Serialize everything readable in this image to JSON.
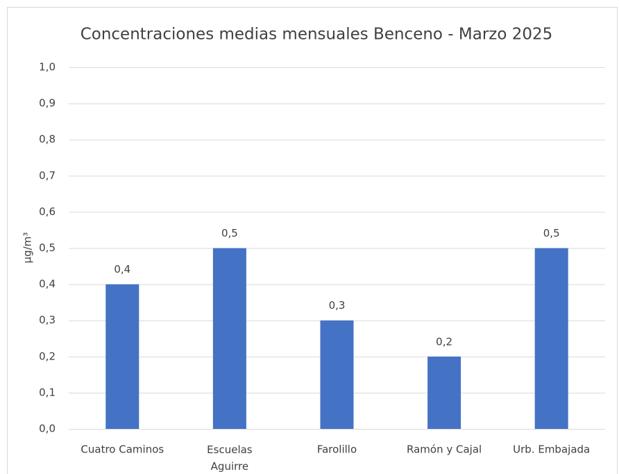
{
  "chart_data": {
    "type": "bar",
    "title": "Concentraciones medias mensuales Benceno - Marzo 2025",
    "y_label": "µg/m³",
    "categories": [
      "Cuatro Caminos",
      "Escuelas Aguirre",
      "Farolillo",
      "Ramón y Cajal",
      "Urb. Embajada"
    ],
    "values": [
      0.4,
      0.5,
      0.3,
      0.2,
      0.5
    ],
    "value_labels": [
      "0,4",
      "0,5",
      "0,3",
      "0,2",
      "0,5"
    ],
    "color": "#4472c4",
    "ylim": [
      0,
      1
    ],
    "yticks": [
      {
        "value": 0,
        "label": "0,0"
      },
      {
        "value": 0.1,
        "label": "0,1"
      },
      {
        "value": 0.2,
        "label": "0,2"
      },
      {
        "value": 0.3,
        "label": "0,3"
      },
      {
        "value": 0.4,
        "label": "0,4"
      },
      {
        "value": 0.5,
        "label": "0,5"
      },
      {
        "value": 0.6,
        "label": "0,6"
      },
      {
        "value": 0.7,
        "label": "0,7"
      },
      {
        "value": 0.8,
        "label": "0,8"
      },
      {
        "value": 0.9,
        "label": "0,9"
      },
      {
        "value": 1,
        "label": "1,0"
      }
    ],
    "grid": true
  }
}
